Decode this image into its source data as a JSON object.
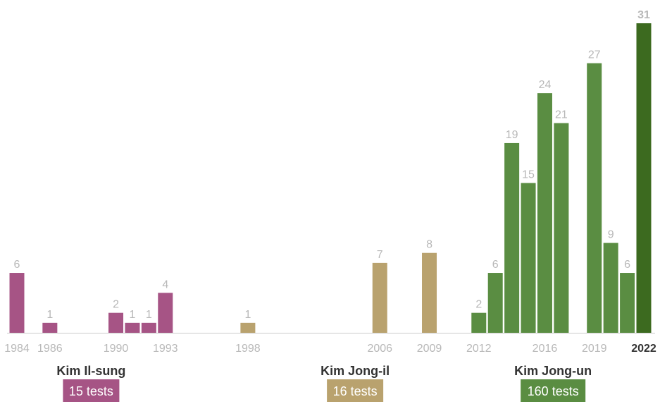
{
  "chart_data": {
    "type": "bar",
    "x": [
      1984,
      1986,
      1990,
      1991,
      1992,
      1993,
      1998,
      2006,
      2009,
      2012,
      2013,
      2014,
      2015,
      2016,
      2017,
      2019,
      2020,
      2021,
      2022
    ],
    "values": [
      6,
      1,
      2,
      1,
      1,
      4,
      1,
      7,
      8,
      2,
      6,
      19,
      15,
      24,
      21,
      27,
      9,
      6,
      31
    ],
    "leaders": [
      "Kim Il-sung",
      "Kim Il-sung",
      "Kim Il-sung",
      "Kim Il-sung",
      "Kim Il-sung",
      "Kim Il-sung",
      "Kim Jong-il",
      "Kim Jong-il",
      "Kim Jong-il",
      "Kim Jong-un",
      "Kim Jong-un",
      "Kim Jong-un",
      "Kim Jong-un",
      "Kim Jong-un",
      "Kim Jong-un",
      "Kim Jong-un",
      "Kim Jong-un",
      "Kim Jong-un",
      "Kim Jong-un"
    ],
    "x_ticks": [
      "1984",
      "1986",
      "1990",
      "1993",
      "1998",
      "2006",
      "2009",
      "2012",
      "2016",
      "2019",
      "2022"
    ],
    "highlight_year": 2022,
    "xlim": [
      1984,
      2022
    ],
    "ylim": [
      0,
      31
    ],
    "grid": false,
    "title": "",
    "xlabel": "",
    "ylabel": ""
  },
  "leader_groups": [
    {
      "name": "Kim Il-sung",
      "tests_label": "15 tests",
      "color": "#a65485"
    },
    {
      "name": "Kim Jong-il",
      "tests_label": "16 tests",
      "color": "#b9a26e"
    },
    {
      "name": "Kim Jong-un",
      "tests_label": "160 tests",
      "color": "#5a8d42"
    }
  ],
  "colors": {
    "highlight_bar": "#3c6a1f",
    "value_label": "#b8b8b8",
    "axis_line": "#cccccc"
  }
}
